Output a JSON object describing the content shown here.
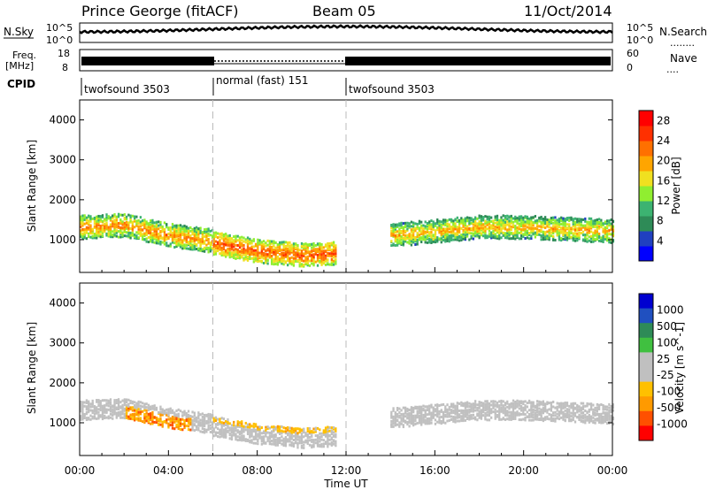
{
  "header": {
    "station": "Prince George (fitACF)",
    "beam": "Beam 05",
    "date": "11/Oct/2014"
  },
  "top_panels": {
    "nsky": {
      "label": "N.Sky",
      "ticks_right": [
        "10^5",
        "10^0"
      ],
      "ticks_left": [
        "10^5",
        "10^0"
      ],
      "right_label": "N.Search",
      "right_marker": "........"
    },
    "freq": {
      "label_line1": "Freq.",
      "label_line2": "[MHz]",
      "ticks_left": [
        "18",
        "8"
      ],
      "ticks_right": [
        "60",
        "0"
      ],
      "right_label": "Nave",
      "right_marker": "...."
    },
    "cpid": {
      "label": "CPID",
      "segments": [
        "twofsound 3503",
        "normal (fast) 151",
        "twofsound 3503"
      ]
    }
  },
  "colors": {
    "power_scale": [
      "#0000ff",
      "#2040c0",
      "#2e8b57",
      "#3cb371",
      "#90ee30",
      "#f0e020",
      "#ffa500",
      "#ff7000",
      "#ff3000",
      "#ff0000"
    ],
    "velocity_scale": [
      "#ff0000",
      "#ff5000",
      "#ff9a00",
      "#ffc000",
      "#c0c0c0",
      "#c0c0c0",
      "#40c040",
      "#2e8b57",
      "#2050c0",
      "#0000d0"
    ]
  },
  "chart_data": [
    {
      "type": "heatmap",
      "panel": "power",
      "xlabel": "Time UT",
      "ylabel": "Slant Range [km]",
      "x_ticks": [
        "00:00",
        "04:00",
        "08:00",
        "12:00",
        "16:00",
        "20:00",
        "00:00"
      ],
      "x_range_hours": [
        0,
        24
      ],
      "y_ticks": [
        1000,
        2000,
        3000,
        4000
      ],
      "ylim": [
        180,
        4500
      ],
      "colorbar_label": "Power [dB]",
      "colorbar_ticks": [
        4,
        8,
        12,
        16,
        20,
        24,
        28
      ],
      "colorbar_range": [
        0,
        30
      ],
      "cpid_boundaries_hours": [
        6.0,
        12.0
      ],
      "features": [
        {
          "name": "band",
          "x": [
            0,
            2,
            4,
            6
          ],
          "y": [
            1300,
            1350,
            1100,
            950
          ],
          "level": 22
        },
        {
          "name": "band",
          "x": [
            6,
            8,
            10,
            11.5
          ],
          "y": [
            900,
            700,
            600,
            650
          ],
          "level": 25
        },
        {
          "name": "band",
          "x": [
            14,
            16,
            18,
            20,
            24
          ],
          "y": [
            1100,
            1200,
            1300,
            1300,
            1200
          ],
          "level": 20
        }
      ]
    },
    {
      "type": "heatmap",
      "panel": "velocity",
      "xlabel": "Time UT",
      "ylabel": "Slant Range [km]",
      "x_ticks": [
        "00:00",
        "04:00",
        "08:00",
        "12:00",
        "16:00",
        "20:00",
        "00:00"
      ],
      "x_range_hours": [
        0,
        24
      ],
      "y_ticks": [
        1000,
        2000,
        3000,
        4000
      ],
      "ylim": [
        180,
        4500
      ],
      "colorbar_label": "Velocity [m s^-1]",
      "colorbar_ticks": [
        "1000",
        "500",
        "100",
        "25",
        "-25",
        "-100",
        "-500",
        "-1000"
      ],
      "cpid_boundaries_hours": [
        6.0,
        12.0
      ]
    }
  ]
}
